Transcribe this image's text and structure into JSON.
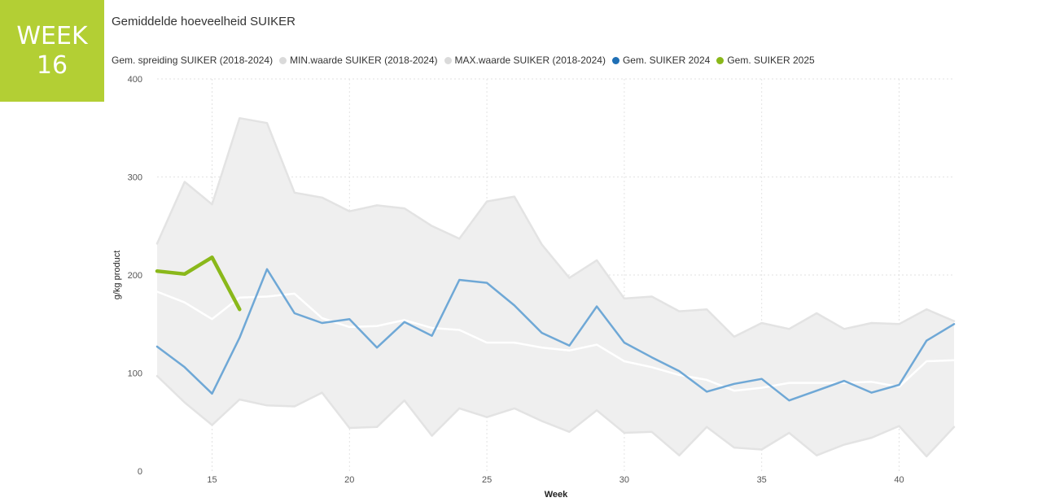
{
  "badge": {
    "line1": "WEEK",
    "line2": "16"
  },
  "chart_data": {
    "type": "line",
    "title": "Gemiddelde hoeveelheid SUIKER",
    "xlabel": "Week",
    "ylabel": "g/kg product",
    "xlim": [
      13,
      42
    ],
    "ylim": [
      0,
      400
    ],
    "x_ticks": [
      15,
      20,
      25,
      30,
      35,
      40
    ],
    "y_ticks": [
      0,
      100,
      200,
      300,
      400
    ],
    "grid": true,
    "legend_position": "top-left",
    "weeks": [
      13,
      14,
      15,
      16,
      17,
      18,
      19,
      20,
      21,
      22,
      23,
      24,
      25,
      26,
      27,
      28,
      29,
      30,
      31,
      32,
      33,
      34,
      35,
      36,
      37,
      38,
      39,
      40,
      41,
      42
    ],
    "legend": [
      {
        "name": "Gem. spreiding SUIKER (2018-2024)",
        "color": "#dadada"
      },
      {
        "name": "MIN.waarde SUIKER (2018-2024)",
        "color": "#dadada"
      },
      {
        "name": "MAX.waarde SUIKER (2018-2024)",
        "color": "#dadada"
      },
      {
        "name": "Gem. SUIKER 2024",
        "color": "#1f6fb5"
      },
      {
        "name": "Gem. SUIKER 2025",
        "color": "#8ab81a"
      }
    ],
    "series": [
      {
        "name": "MIN.waarde SUIKER (2018-2024)",
        "color": "#e3e3e3",
        "values": [
          97,
          70,
          47,
          73,
          67,
          66,
          80,
          44,
          45,
          72,
          36,
          64,
          55,
          64,
          51,
          40,
          62,
          39,
          40,
          16,
          45,
          24,
          22,
          39,
          16,
          27,
          34,
          46,
          15,
          45
        ]
      },
      {
        "name": "MAX.waarde SUIKER (2018-2024)",
        "color": "#e3e3e3",
        "values": [
          232,
          295,
          272,
          360,
          355,
          284,
          279,
          265,
          271,
          268,
          250,
          237,
          275,
          280,
          231,
          197,
          215,
          176,
          178,
          163,
          165,
          137,
          151,
          145,
          161,
          145,
          151,
          150,
          165,
          153
        ]
      },
      {
        "name": "Gem. spreiding SUIKER (2018-2024)",
        "color": "#ffffff",
        "values": [
          183,
          172,
          155,
          177,
          178,
          181,
          156,
          147,
          148,
          154,
          146,
          144,
          131,
          131,
          126,
          123,
          129,
          112,
          106,
          98,
          93,
          82,
          85,
          90,
          90,
          90,
          91,
          86,
          112,
          113
        ]
      },
      {
        "name": "Gem. SUIKER 2024",
        "color": "#6fa8d6",
        "values": [
          127,
          106,
          79,
          136,
          206,
          161,
          151,
          155,
          126,
          152,
          138,
          195,
          192,
          169,
          141,
          128,
          168,
          131,
          116,
          102,
          81,
          89,
          94,
          72,
          82,
          92,
          80,
          88,
          133,
          150
        ]
      },
      {
        "name": "Gem. SUIKER 2025",
        "color": "#8ab81a",
        "x": [
          13,
          14,
          15,
          16
        ],
        "values": [
          204,
          201,
          218,
          165
        ]
      }
    ]
  }
}
